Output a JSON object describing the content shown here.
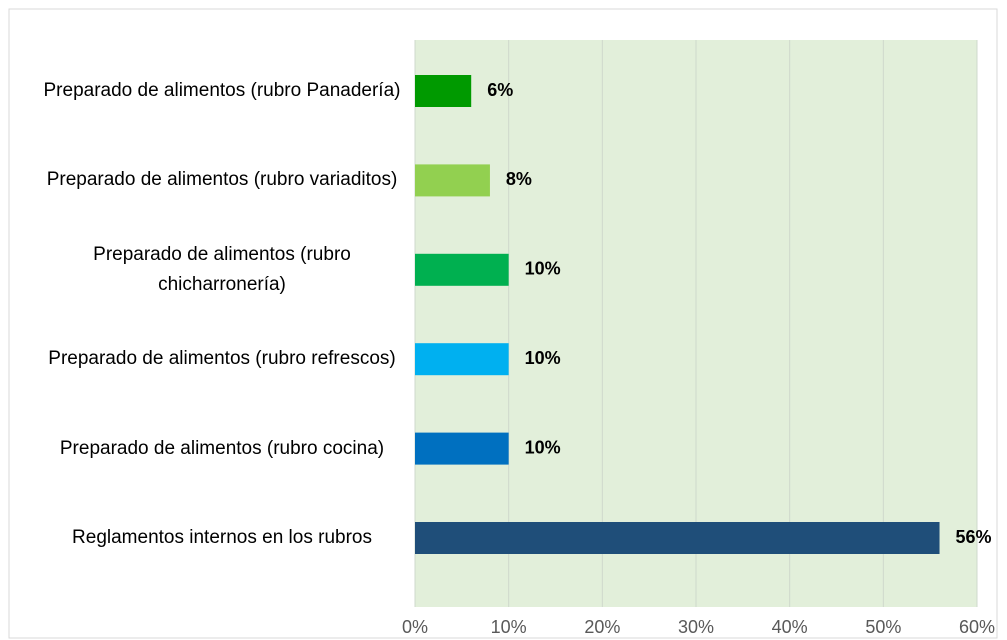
{
  "chart_data": {
    "type": "barh",
    "categories": [
      "Preparado de alimentos (rubro Panadería)",
      "Preparado de alimentos (rubro variaditos)",
      "Preparado de alimentos (rubro chicharronería)",
      "Preparado de alimentos (rubro refrescos)",
      "Preparado de alimentos (rubro cocina)",
      "Reglamentos internos en los rubros"
    ],
    "values": [
      6,
      8,
      10,
      10,
      10,
      56
    ],
    "value_labels": [
      "6%",
      "8%",
      "10%",
      "10%",
      "10%",
      "56%"
    ],
    "colors": [
      "#009a00",
      "#92d050",
      "#00b050",
      "#00b0f0",
      "#0070c0",
      "#1f4e79"
    ],
    "xlim": [
      0,
      60
    ],
    "xticks": [
      {
        "value": 0,
        "label": "0%"
      },
      {
        "value": 10,
        "label": "10%"
      },
      {
        "value": 20,
        "label": "20%"
      },
      {
        "value": 30,
        "label": "30%"
      },
      {
        "value": 40,
        "label": "40%"
      },
      {
        "value": 50,
        "label": "50%"
      },
      {
        "value": 60,
        "label": "60%"
      }
    ],
    "grid": true
  }
}
